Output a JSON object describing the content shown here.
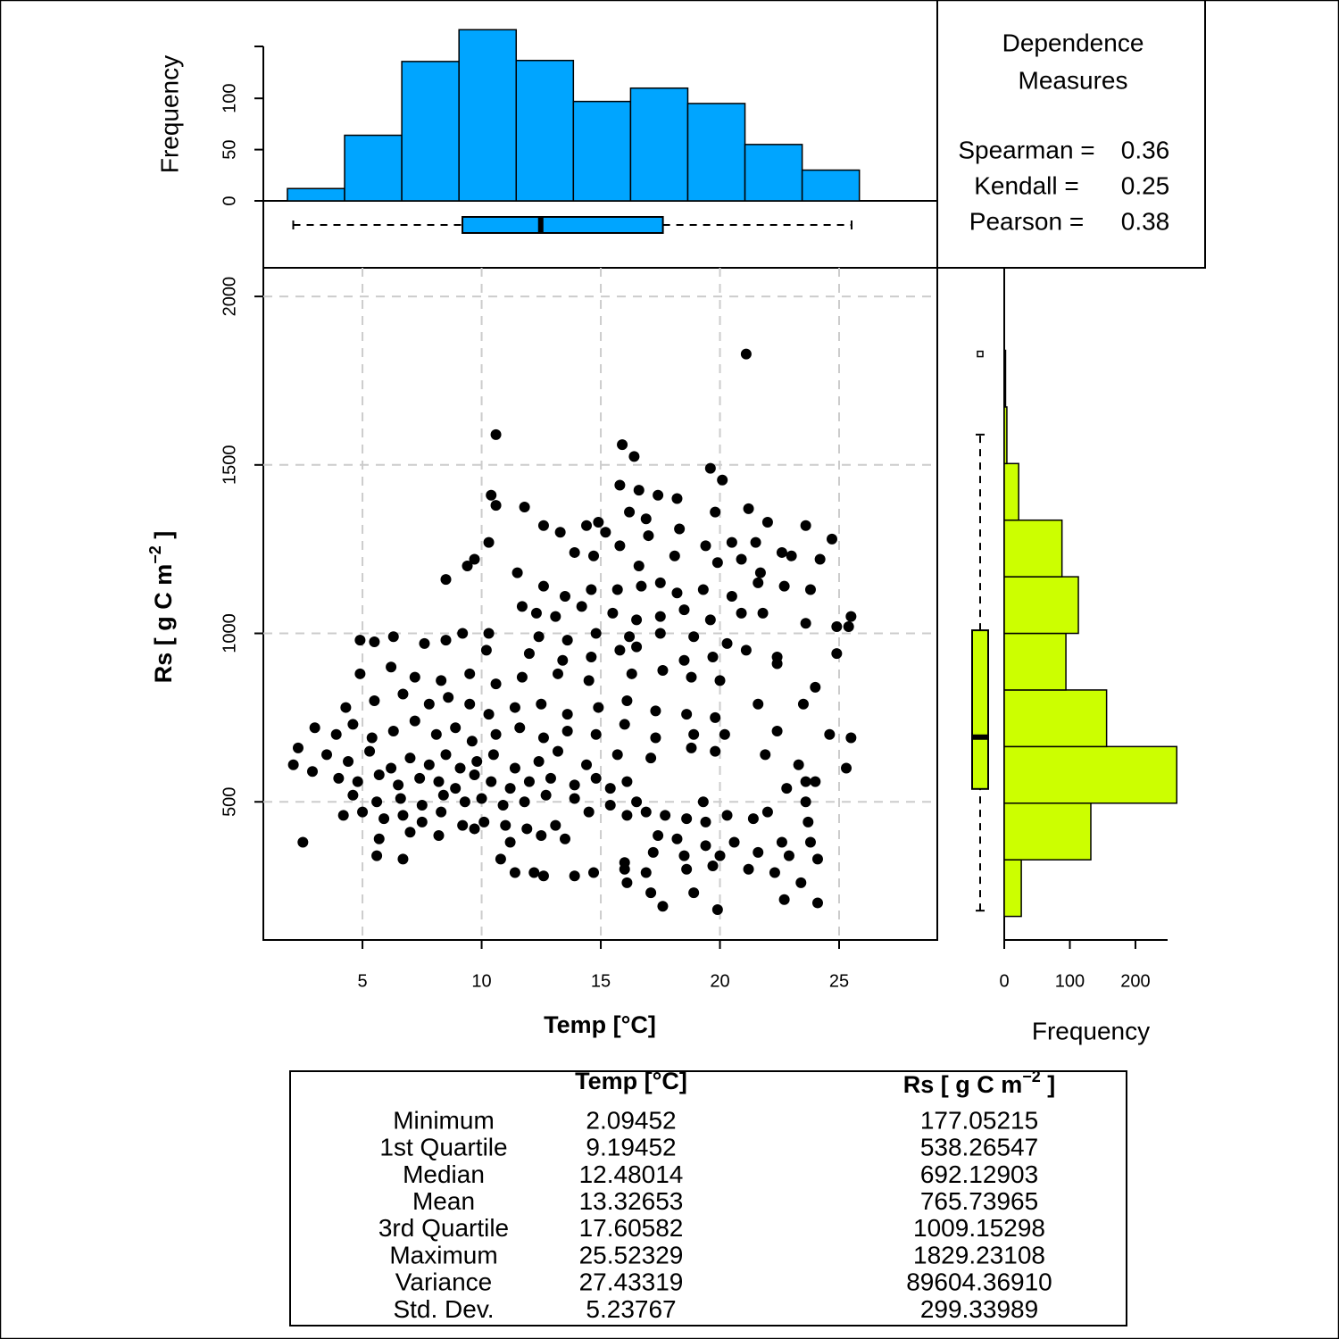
{
  "chart_data": [
    {
      "type": "scatter",
      "xlabel": "Temp [°C]",
      "ylabel": {
        "text": "Rs [ g C m",
        "superscript": "−2",
        "suffix": " ]"
      },
      "xlim": [
        0.84,
        29.12
      ],
      "ylim": [
        90,
        2085
      ],
      "xticks": [
        5,
        10,
        15,
        20,
        25
      ],
      "yticks": [
        500,
        1000,
        1500,
        2000
      ],
      "grid": true,
      "color": "#000000",
      "x": [
        21.1,
        10.6,
        15.9,
        16.4,
        19.6,
        20.1,
        10.4,
        15.8,
        16.6,
        17.4,
        18.2,
        10.6,
        11.8,
        14.9,
        16.2,
        16.9,
        19.8,
        21.2,
        22.0,
        23.6,
        24.7,
        12.6,
        13.3,
        14.4,
        15.2,
        17.0,
        18.3,
        19.4,
        20.5,
        21.5,
        22.6,
        9.7,
        10.3,
        9.4,
        13.9,
        14.7,
        15.8,
        16.6,
        18.1,
        19.9,
        20.9,
        21.7,
        23.0,
        24.2,
        8.5,
        11.5,
        12.6,
        13.5,
        14.6,
        15.7,
        16.7,
        17.5,
        18.2,
        19.3,
        20.5,
        21.6,
        22.7,
        23.8,
        11.7,
        12.3,
        13.1,
        14.2,
        15.5,
        16.5,
        17.5,
        18.5,
        19.6,
        20.9,
        21.8,
        23.6,
        24.9,
        25.5,
        25.4,
        24.9,
        9.2,
        10.3,
        12.4,
        13.6,
        14.8,
        16.2,
        17.5,
        18.9,
        20.3,
        21.1,
        22.4,
        4.9,
        5.5,
        6.3,
        7.6,
        8.5,
        10.2,
        12.0,
        13.4,
        14.6,
        15.8,
        16.5,
        18.5,
        19.7,
        22.4,
        4.9,
        6.2,
        7.2,
        8.3,
        9.5,
        10.6,
        11.7,
        13.2,
        14.5,
        16.3,
        17.6,
        18.8,
        20.0,
        24.0,
        4.3,
        5.5,
        6.7,
        7.8,
        8.6,
        9.5,
        10.3,
        11.4,
        12.5,
        13.6,
        14.9,
        16.1,
        17.3,
        18.6,
        19.8,
        21.6,
        23.5,
        3.0,
        3.9,
        4.6,
        5.4,
        6.3,
        7.2,
        8.1,
        8.9,
        9.6,
        10.6,
        11.6,
        12.6,
        13.6,
        14.8,
        16.0,
        17.3,
        18.9,
        20.2,
        22.4,
        24.6,
        25.5,
        2.3,
        3.5,
        4.4,
        5.3,
        6.2,
        7.0,
        7.8,
        8.5,
        9.1,
        9.8,
        10.5,
        11.4,
        12.4,
        13.2,
        14.4,
        15.7,
        17.1,
        18.8,
        19.8,
        21.9,
        23.3,
        25.3,
        2.1,
        2.9,
        4.0,
        4.8,
        5.7,
        6.5,
        7.4,
        8.2,
        8.9,
        9.7,
        10.4,
        11.2,
        12.0,
        12.9,
        13.9,
        14.8,
        15.4,
        16.1,
        22.8,
        23.6,
        24.0,
        4.6,
        5.6,
        6.6,
        7.5,
        8.4,
        9.3,
        10.0,
        10.9,
        11.8,
        12.7,
        13.9,
        15.4,
        16.5,
        19.3,
        23.6,
        4.2,
        5.0,
        5.9,
        6.7,
        7.5,
        8.3,
        9.2,
        10.1,
        11.0,
        11.9,
        13.1,
        14.5,
        16.1,
        16.9,
        17.7,
        18.6,
        19.4,
        20.3,
        21.4,
        22.0,
        23.7,
        2.5,
        5.7,
        7.0,
        8.2,
        9.7,
        11.2,
        12.5,
        13.5,
        17.4,
        18.2,
        19.4,
        20.6,
        22.6,
        23.8,
        5.6,
        6.7,
        10.8,
        16.0,
        17.2,
        18.5,
        20.0,
        21.6,
        22.9,
        24.1,
        11.4,
        12.2,
        13.9,
        14.7,
        16.0,
        16.9,
        18.6,
        19.7,
        21.2,
        22.3,
        23.4,
        12.6,
        16.1,
        17.1,
        18.9,
        22.7,
        24.1,
        17.6,
        19.9
      ],
      "values": [
        1829,
        1590,
        1560,
        1525,
        1490,
        1455,
        1410,
        1440,
        1425,
        1410,
        1400,
        1380,
        1375,
        1330,
        1360,
        1340,
        1360,
        1370,
        1330,
        1320,
        1280,
        1320,
        1300,
        1320,
        1300,
        1290,
        1310,
        1260,
        1270,
        1270,
        1240,
        1220,
        1270,
        1200,
        1240,
        1230,
        1260,
        1200,
        1230,
        1210,
        1220,
        1180,
        1230,
        1220,
        1160,
        1180,
        1140,
        1110,
        1130,
        1130,
        1140,
        1150,
        1120,
        1130,
        1110,
        1150,
        1140,
        1130,
        1080,
        1060,
        1050,
        1080,
        1060,
        1040,
        1050,
        1070,
        1040,
        1060,
        1060,
        1030,
        1020,
        1050,
        1020,
        940,
        1000,
        1000,
        990,
        980,
        1000,
        990,
        1000,
        990,
        970,
        950,
        930,
        980,
        975,
        990,
        970,
        980,
        950,
        940,
        920,
        930,
        950,
        960,
        920,
        930,
        910,
        880,
        900,
        870,
        860,
        880,
        850,
        870,
        880,
        860,
        880,
        890,
        870,
        860,
        840,
        780,
        800,
        820,
        790,
        810,
        790,
        760,
        780,
        790,
        760,
        780,
        800,
        770,
        760,
        750,
        790,
        790,
        720,
        700,
        730,
        690,
        710,
        740,
        700,
        720,
        680,
        700,
        720,
        690,
        710,
        700,
        730,
        690,
        700,
        700,
        710,
        700,
        690,
        660,
        640,
        620,
        650,
        600,
        630,
        610,
        640,
        600,
        620,
        640,
        600,
        620,
        650,
        610,
        640,
        630,
        660,
        650,
        640,
        610,
        600,
        610,
        590,
        570,
        560,
        580,
        550,
        570,
        560,
        540,
        580,
        560,
        540,
        560,
        570,
        550,
        570,
        540,
        560,
        540,
        560,
        560,
        520,
        500,
        510,
        490,
        520,
        500,
        510,
        490,
        500,
        520,
        510,
        490,
        500,
        500,
        500,
        460,
        470,
        450,
        460,
        440,
        470,
        430,
        440,
        430,
        420,
        430,
        470,
        460,
        470,
        460,
        450,
        440,
        460,
        450,
        470,
        440,
        380,
        390,
        410,
        400,
        420,
        380,
        400,
        390,
        400,
        390,
        370,
        380,
        380,
        380,
        340,
        330,
        330,
        320,
        350,
        340,
        340,
        350,
        340,
        330,
        290,
        290,
        280,
        290,
        300,
        290,
        300,
        310,
        300,
        290,
        260,
        280,
        260,
        230,
        230,
        210,
        200,
        190,
        180
      ]
    },
    {
      "type": "histogram",
      "ylabel": "Frequency",
      "color": "#00a5ff",
      "bins": [
        1.85,
        4.25,
        6.65,
        9.05,
        11.45,
        13.85,
        16.25,
        18.65,
        21.05,
        23.45,
        25.85
      ],
      "values": [
        12,
        64,
        136,
        167,
        137,
        97,
        110,
        95,
        55,
        30
      ],
      "ylim": [
        0,
        196
      ],
      "yticks": [
        0,
        50,
        100
      ]
    },
    {
      "type": "boxplot",
      "orientation": "horizontal",
      "color": "#00a5ff",
      "whisker_low": 2.09452,
      "q1": 9.19452,
      "median": 12.48014,
      "q3": 17.60582,
      "whisker_high": 25.52329
    },
    {
      "type": "histogram",
      "orientation": "horizontal",
      "xlabel": "Frequency",
      "color": "#ccff00",
      "bins": [
        160,
        328,
        496,
        664,
        832,
        1000,
        1168,
        1336,
        1504,
        1672,
        1840
      ],
      "values": [
        26,
        132,
        263,
        156,
        94,
        113,
        88,
        22,
        4,
        2
      ],
      "xlim": [
        0,
        307
      ],
      "xticks": [
        0,
        100,
        200
      ]
    },
    {
      "type": "boxplot",
      "orientation": "vertical",
      "color": "#ccff00",
      "whisker_low": 177.05215,
      "q1": 538.26547,
      "median": 692.12903,
      "q3": 1009.15298,
      "whisker_high": 1590,
      "outliers": [
        1829.23108
      ]
    }
  ],
  "dependence": {
    "title": [
      "Dependence",
      "Measures"
    ],
    "measures": [
      {
        "label": "Spearman =",
        "value": "0.36"
      },
      {
        "label": "Kendall =",
        "value": "0.25"
      },
      {
        "label": "Pearson =",
        "value": "0.38"
      }
    ]
  },
  "summary_table": {
    "columns": [
      {
        "text": "Temp [°C]"
      },
      {
        "text": "Rs [ g C m",
        "superscript": "−2",
        "suffix": " ]"
      }
    ],
    "rows": [
      [
        "Minimum",
        "2.09452",
        "177.05215"
      ],
      [
        "1st Quartile",
        "9.19452",
        "538.26547"
      ],
      [
        "Median",
        "12.48014",
        "692.12903"
      ],
      [
        "Mean",
        "13.32653",
        "765.73965"
      ],
      [
        "3rd Quartile",
        "17.60582",
        "1009.15298"
      ],
      [
        "Maximum",
        "25.52329",
        "1829.23108"
      ],
      [
        "Variance",
        "27.43319",
        "89604.36910"
      ],
      [
        "Std. Dev.",
        "5.23767",
        "299.33989"
      ]
    ]
  }
}
